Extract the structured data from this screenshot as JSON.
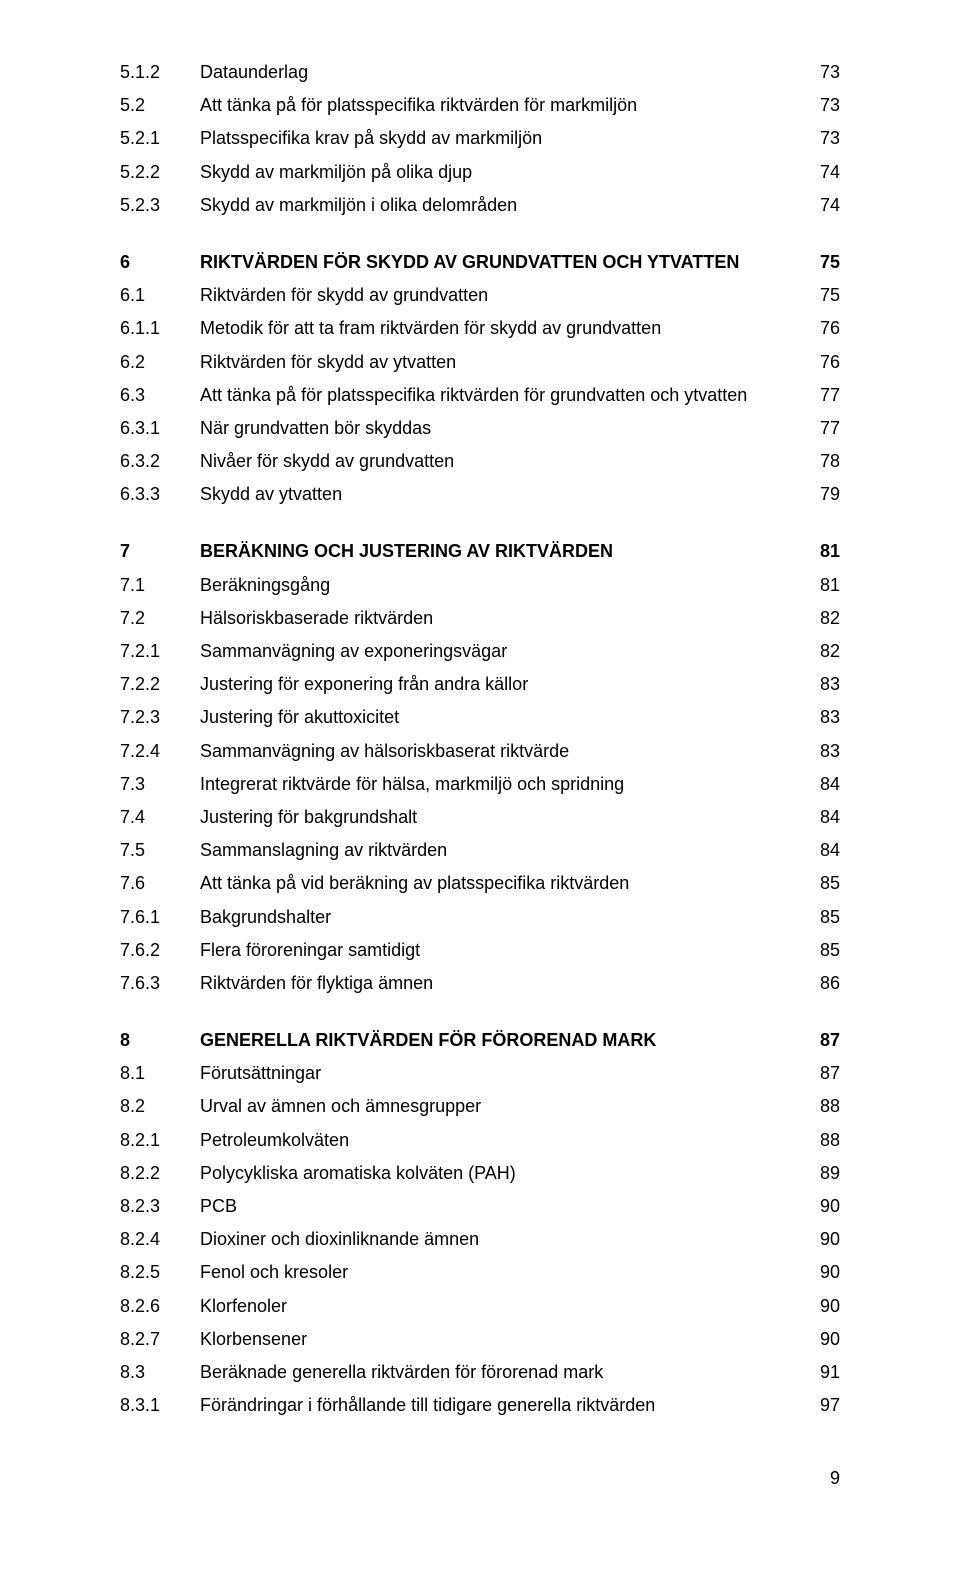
{
  "entries": [
    {
      "num": "5.1.2",
      "title": "Dataunderlag",
      "page": "73",
      "bold": false,
      "gap": false
    },
    {
      "num": "5.2",
      "title": "Att tänka på för platsspecifika riktvärden för markmiljön",
      "page": "73",
      "bold": false,
      "gap": false
    },
    {
      "num": "5.2.1",
      "title": "Platsspecifika krav på skydd av markmiljön",
      "page": "73",
      "bold": false,
      "gap": false
    },
    {
      "num": "5.2.2",
      "title": "Skydd av markmiljön på olika djup",
      "page": "74",
      "bold": false,
      "gap": false
    },
    {
      "num": "5.2.3",
      "title": "Skydd av markmiljön i olika delområden",
      "page": "74",
      "bold": false,
      "gap": true
    },
    {
      "num": "6",
      "title": "RIKTVÄRDEN FÖR SKYDD AV GRUNDVATTEN OCH YTVATTEN",
      "page": "75",
      "bold": true,
      "gap": false
    },
    {
      "num": "6.1",
      "title": "Riktvärden för skydd av grundvatten",
      "page": "75",
      "bold": false,
      "gap": false
    },
    {
      "num": "6.1.1",
      "title": "Metodik för att ta fram riktvärden för skydd av grundvatten",
      "page": "76",
      "bold": false,
      "gap": false
    },
    {
      "num": "6.2",
      "title": "Riktvärden för skydd av ytvatten",
      "page": "76",
      "bold": false,
      "gap": false
    },
    {
      "num": "6.3",
      "title": "Att tänka på för platsspecifika riktvärden för grundvatten och ytvatten",
      "page": "77",
      "bold": false,
      "gap": false
    },
    {
      "num": "6.3.1",
      "title": "När grundvatten bör skyddas",
      "page": "77",
      "bold": false,
      "gap": false
    },
    {
      "num": "6.3.2",
      "title": "Nivåer för skydd av grundvatten",
      "page": "78",
      "bold": false,
      "gap": false
    },
    {
      "num": "6.3.3",
      "title": "Skydd av ytvatten",
      "page": "79",
      "bold": false,
      "gap": true
    },
    {
      "num": "7",
      "title": "BERÄKNING OCH JUSTERING AV RIKTVÄRDEN",
      "page": "81",
      "bold": true,
      "gap": false
    },
    {
      "num": "7.1",
      "title": "Beräkningsgång",
      "page": "81",
      "bold": false,
      "gap": false
    },
    {
      "num": "7.2",
      "title": "Hälsoriskbaserade riktvärden",
      "page": "82",
      "bold": false,
      "gap": false
    },
    {
      "num": "7.2.1",
      "title": "Sammanvägning av exponeringsvägar",
      "page": "82",
      "bold": false,
      "gap": false
    },
    {
      "num": "7.2.2",
      "title": "Justering för exponering från andra källor",
      "page": "83",
      "bold": false,
      "gap": false
    },
    {
      "num": "7.2.3",
      "title": "Justering för akuttoxicitet",
      "page": "83",
      "bold": false,
      "gap": false
    },
    {
      "num": "7.2.4",
      "title": "Sammanvägning av hälsoriskbaserat riktvärde",
      "page": "83",
      "bold": false,
      "gap": false
    },
    {
      "num": "7.3",
      "title": "Integrerat riktvärde för hälsa, markmiljö och spridning",
      "page": "84",
      "bold": false,
      "gap": false
    },
    {
      "num": "7.4",
      "title": "Justering för bakgrundshalt",
      "page": "84",
      "bold": false,
      "gap": false
    },
    {
      "num": "7.5",
      "title": "Sammanslagning av riktvärden",
      "page": "84",
      "bold": false,
      "gap": false
    },
    {
      "num": "7.6",
      "title": "Att tänka på vid beräkning av platsspecifika riktvärden",
      "page": "85",
      "bold": false,
      "gap": false
    },
    {
      "num": "7.6.1",
      "title": "Bakgrundshalter",
      "page": "85",
      "bold": false,
      "gap": false
    },
    {
      "num": "7.6.2",
      "title": "Flera föroreningar samtidigt",
      "page": "85",
      "bold": false,
      "gap": false
    },
    {
      "num": "7.6.3",
      "title": "Riktvärden för flyktiga ämnen",
      "page": "86",
      "bold": false,
      "gap": true
    },
    {
      "num": "8",
      "title": "GENERELLA RIKTVÄRDEN FÖR FÖRORENAD MARK",
      "page": "87",
      "bold": true,
      "gap": false
    },
    {
      "num": "8.1",
      "title": "Förutsättningar",
      "page": "87",
      "bold": false,
      "gap": false
    },
    {
      "num": "8.2",
      "title": "Urval av ämnen och ämnesgrupper",
      "page": "88",
      "bold": false,
      "gap": false
    },
    {
      "num": "8.2.1",
      "title": "Petroleumkolväten",
      "page": "88",
      "bold": false,
      "gap": false
    },
    {
      "num": "8.2.2",
      "title": "Polycykliska aromatiska kolväten (PAH)",
      "page": "89",
      "bold": false,
      "gap": false
    },
    {
      "num": "8.2.3",
      "title": "PCB",
      "page": "90",
      "bold": false,
      "gap": false
    },
    {
      "num": "8.2.4",
      "title": "Dioxiner och dioxinliknande ämnen",
      "page": "90",
      "bold": false,
      "gap": false
    },
    {
      "num": "8.2.5",
      "title": "Fenol och kresoler",
      "page": "90",
      "bold": false,
      "gap": false
    },
    {
      "num": "8.2.6",
      "title": "Klorfenoler",
      "page": "90",
      "bold": false,
      "gap": false
    },
    {
      "num": "8.2.7",
      "title": "Klorbensener",
      "page": "90",
      "bold": false,
      "gap": false
    },
    {
      "num": "8.3",
      "title": "Beräknade generella riktvärden för förorenad mark",
      "page": "91",
      "bold": false,
      "gap": false
    },
    {
      "num": "8.3.1",
      "title": "Förändringar i förhållande till tidigare generella riktvärden",
      "page": "97",
      "bold": false,
      "gap": false
    }
  ],
  "pageNumber": "9"
}
